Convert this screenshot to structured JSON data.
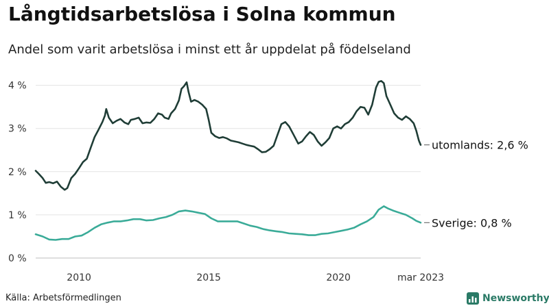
{
  "header": {
    "title": "Långtidsarbetslösa i Solna kommun",
    "subtitle": "Andel som varit arbetslösa i minst ett år uppdelat på födelseland"
  },
  "footer": {
    "source": "Källa: Arbetsförmedlingen",
    "brand": "Newsworthy",
    "brand_icon": "newsworthy-logo-icon"
  },
  "chart_data": {
    "type": "line",
    "title": "Långtidsarbetslösa i Solna kommun",
    "subtitle": "Andel som varit arbetslösa i minst ett år uppdelat på födelseland",
    "xlabel": "",
    "ylabel": "",
    "ylim": [
      0,
      4.2
    ],
    "xlim": [
      2008.33,
      2023.17
    ],
    "yticks": [
      0,
      1,
      2,
      3,
      4
    ],
    "ytick_labels": [
      "0 %",
      "1 %",
      "2 %",
      "3 %",
      "4 %"
    ],
    "xticks": [
      2010,
      2015,
      2020,
      2023.17
    ],
    "xtick_labels": [
      "2010",
      "2015",
      "2020",
      "mar 2023"
    ],
    "grid": true,
    "legend": "end-labels",
    "series": [
      {
        "name": "utomlands",
        "end_label": "utomlands: 2,6 %",
        "color": "#1f3d36",
        "points": [
          [
            2008.33,
            2.02
          ],
          [
            2008.45,
            1.95
          ],
          [
            2008.6,
            1.85
          ],
          [
            2008.72,
            1.74
          ],
          [
            2008.85,
            1.76
          ],
          [
            2009.0,
            1.73
          ],
          [
            2009.15,
            1.77
          ],
          [
            2009.3,
            1.65
          ],
          [
            2009.45,
            1.58
          ],
          [
            2009.55,
            1.62
          ],
          [
            2009.7,
            1.85
          ],
          [
            2009.85,
            1.95
          ],
          [
            2010.0,
            2.08
          ],
          [
            2010.15,
            2.22
          ],
          [
            2010.3,
            2.3
          ],
          [
            2010.45,
            2.55
          ],
          [
            2010.6,
            2.8
          ],
          [
            2010.75,
            2.97
          ],
          [
            2010.9,
            3.15
          ],
          [
            2011.0,
            3.3
          ],
          [
            2011.05,
            3.45
          ],
          [
            2011.15,
            3.25
          ],
          [
            2011.3,
            3.12
          ],
          [
            2011.45,
            3.18
          ],
          [
            2011.6,
            3.22
          ],
          [
            2011.75,
            3.14
          ],
          [
            2011.9,
            3.1
          ],
          [
            2012.0,
            3.2
          ],
          [
            2012.15,
            3.22
          ],
          [
            2012.3,
            3.25
          ],
          [
            2012.45,
            3.12
          ],
          [
            2012.6,
            3.14
          ],
          [
            2012.75,
            3.13
          ],
          [
            2012.9,
            3.22
          ],
          [
            2013.05,
            3.35
          ],
          [
            2013.2,
            3.32
          ],
          [
            2013.3,
            3.25
          ],
          [
            2013.45,
            3.22
          ],
          [
            2013.55,
            3.35
          ],
          [
            2013.7,
            3.45
          ],
          [
            2013.85,
            3.65
          ],
          [
            2013.95,
            3.92
          ],
          [
            2014.05,
            3.98
          ],
          [
            2014.15,
            4.07
          ],
          [
            2014.22,
            3.85
          ],
          [
            2014.32,
            3.62
          ],
          [
            2014.45,
            3.66
          ],
          [
            2014.6,
            3.62
          ],
          [
            2014.75,
            3.55
          ],
          [
            2014.9,
            3.45
          ],
          [
            2015.0,
            3.2
          ],
          [
            2015.1,
            2.9
          ],
          [
            2015.25,
            2.82
          ],
          [
            2015.4,
            2.78
          ],
          [
            2015.55,
            2.8
          ],
          [
            2015.7,
            2.77
          ],
          [
            2015.85,
            2.72
          ],
          [
            2016.0,
            2.7
          ],
          [
            2016.15,
            2.68
          ],
          [
            2016.3,
            2.65
          ],
          [
            2016.45,
            2.62
          ],
          [
            2016.6,
            2.6
          ],
          [
            2016.75,
            2.58
          ],
          [
            2016.9,
            2.52
          ],
          [
            2017.05,
            2.45
          ],
          [
            2017.2,
            2.46
          ],
          [
            2017.35,
            2.52
          ],
          [
            2017.5,
            2.6
          ],
          [
            2017.65,
            2.85
          ],
          [
            2017.8,
            3.1
          ],
          [
            2017.95,
            3.15
          ],
          [
            2018.1,
            3.05
          ],
          [
            2018.25,
            2.88
          ],
          [
            2018.45,
            2.65
          ],
          [
            2018.6,
            2.7
          ],
          [
            2018.75,
            2.82
          ],
          [
            2018.9,
            2.92
          ],
          [
            2019.05,
            2.85
          ],
          [
            2019.2,
            2.7
          ],
          [
            2019.35,
            2.6
          ],
          [
            2019.5,
            2.68
          ],
          [
            2019.65,
            2.78
          ],
          [
            2019.8,
            3.0
          ],
          [
            2019.95,
            3.05
          ],
          [
            2020.1,
            3.0
          ],
          [
            2020.25,
            3.1
          ],
          [
            2020.4,
            3.15
          ],
          [
            2020.55,
            3.25
          ],
          [
            2020.7,
            3.4
          ],
          [
            2020.85,
            3.5
          ],
          [
            2021.0,
            3.48
          ],
          [
            2021.15,
            3.32
          ],
          [
            2021.3,
            3.55
          ],
          [
            2021.45,
            3.95
          ],
          [
            2021.55,
            4.08
          ],
          [
            2021.65,
            4.1
          ],
          [
            2021.75,
            4.05
          ],
          [
            2021.85,
            3.75
          ],
          [
            2022.0,
            3.55
          ],
          [
            2022.15,
            3.35
          ],
          [
            2022.3,
            3.25
          ],
          [
            2022.45,
            3.2
          ],
          [
            2022.6,
            3.28
          ],
          [
            2022.75,
            3.22
          ],
          [
            2022.9,
            3.12
          ],
          [
            2023.0,
            2.95
          ],
          [
            2023.1,
            2.72
          ],
          [
            2023.17,
            2.62
          ]
        ]
      },
      {
        "name": "Sverige",
        "end_label": "Sverige: 0,8 %",
        "color": "#3aab98",
        "points": [
          [
            2008.33,
            0.55
          ],
          [
            2008.6,
            0.5
          ],
          [
            2008.85,
            0.43
          ],
          [
            2009.1,
            0.42
          ],
          [
            2009.35,
            0.44
          ],
          [
            2009.6,
            0.44
          ],
          [
            2009.85,
            0.5
          ],
          [
            2010.1,
            0.52
          ],
          [
            2010.35,
            0.6
          ],
          [
            2010.6,
            0.7
          ],
          [
            2010.85,
            0.78
          ],
          [
            2011.1,
            0.82
          ],
          [
            2011.35,
            0.85
          ],
          [
            2011.6,
            0.85
          ],
          [
            2011.85,
            0.87
          ],
          [
            2012.1,
            0.9
          ],
          [
            2012.35,
            0.9
          ],
          [
            2012.6,
            0.87
          ],
          [
            2012.85,
            0.88
          ],
          [
            2013.1,
            0.92
          ],
          [
            2013.35,
            0.95
          ],
          [
            2013.6,
            1.0
          ],
          [
            2013.85,
            1.08
          ],
          [
            2014.1,
            1.1
          ],
          [
            2014.35,
            1.08
          ],
          [
            2014.6,
            1.05
          ],
          [
            2014.85,
            1.02
          ],
          [
            2015.1,
            0.92
          ],
          [
            2015.35,
            0.85
          ],
          [
            2015.6,
            0.85
          ],
          [
            2015.85,
            0.85
          ],
          [
            2016.1,
            0.85
          ],
          [
            2016.35,
            0.8
          ],
          [
            2016.6,
            0.75
          ],
          [
            2016.85,
            0.72
          ],
          [
            2017.1,
            0.67
          ],
          [
            2017.35,
            0.64
          ],
          [
            2017.6,
            0.62
          ],
          [
            2017.85,
            0.6
          ],
          [
            2018.1,
            0.57
          ],
          [
            2018.35,
            0.56
          ],
          [
            2018.6,
            0.55
          ],
          [
            2018.85,
            0.53
          ],
          [
            2019.1,
            0.53
          ],
          [
            2019.35,
            0.56
          ],
          [
            2019.6,
            0.57
          ],
          [
            2019.85,
            0.6
          ],
          [
            2020.1,
            0.63
          ],
          [
            2020.35,
            0.66
          ],
          [
            2020.6,
            0.7
          ],
          [
            2020.85,
            0.78
          ],
          [
            2021.1,
            0.85
          ],
          [
            2021.35,
            0.95
          ],
          [
            2021.55,
            1.12
          ],
          [
            2021.75,
            1.2
          ],
          [
            2021.9,
            1.15
          ],
          [
            2022.1,
            1.1
          ],
          [
            2022.35,
            1.05
          ],
          [
            2022.6,
            1.0
          ],
          [
            2022.85,
            0.92
          ],
          [
            2023.0,
            0.86
          ],
          [
            2023.17,
            0.82
          ]
        ]
      }
    ]
  }
}
